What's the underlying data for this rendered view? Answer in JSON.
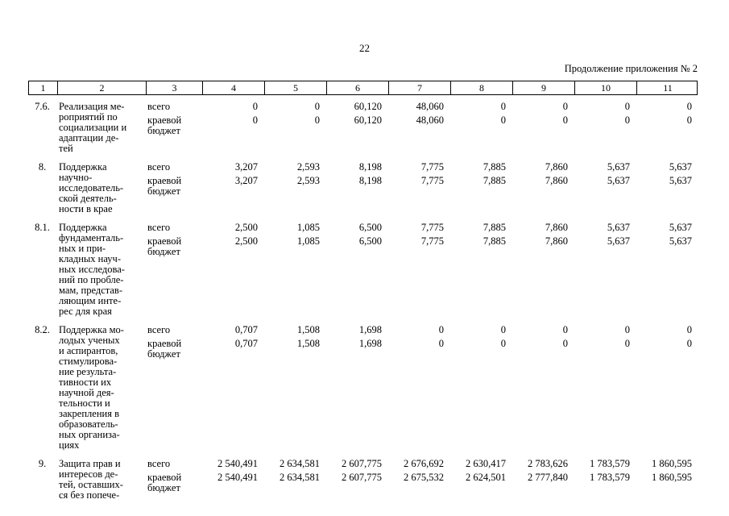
{
  "page": {
    "number": "22",
    "note": "Продолжение приложения № 2"
  },
  "table": {
    "columns": [
      "1",
      "2",
      "3",
      "4",
      "5",
      "6",
      "7",
      "8",
      "9",
      "10",
      "11"
    ],
    "rows": [
      {
        "num": "7.6.",
        "name": "Реализация ме-\nроприятий по\nсоциализации и\nадаптации де-\nтей",
        "total_label": "всего",
        "regional_label": "краевой\nбюджет",
        "total_values": [
          "0",
          "0",
          "60,120",
          "48,060",
          "0",
          "0",
          "0",
          "0"
        ],
        "regional_values": [
          "0",
          "0",
          "60,120",
          "48,060",
          "0",
          "0",
          "0",
          "0"
        ]
      },
      {
        "num": "8.",
        "name": "Поддержка\nнаучно-\nисследователь-\nской деятель-\nности в крае",
        "total_label": "всего",
        "regional_label": "краевой\nбюджет",
        "total_values": [
          "3,207",
          "2,593",
          "8,198",
          "7,775",
          "7,885",
          "7,860",
          "5,637",
          "5,637"
        ],
        "regional_values": [
          "3,207",
          "2,593",
          "8,198",
          "7,775",
          "7,885",
          "7,860",
          "5,637",
          "5,637"
        ]
      },
      {
        "num": "8.1.",
        "name": "Поддержка\nфундаменталь-\nных и при-\nкладных науч-\nных исследова-\nний по пробле-\nмам, представ-\nляющим инте-\nрес для края",
        "total_label": "всего",
        "regional_label": "краевой\nбюджет",
        "total_values": [
          "2,500",
          "1,085",
          "6,500",
          "7,775",
          "7,885",
          "7,860",
          "5,637",
          "5,637"
        ],
        "regional_values": [
          "2,500",
          "1,085",
          "6,500",
          "7,775",
          "7,885",
          "7,860",
          "5,637",
          "5,637"
        ]
      },
      {
        "num": "8.2.",
        "name": "Поддержка мо-\nлодых ученых\nи аспирантов,\nстимулирова-\nние результа-\nтивности их\nнаучной дея-\nтельности и\nзакрепления в\nобразователь-\nных организа-\nциях",
        "total_label": "всего",
        "regional_label": "краевой\nбюджет",
        "total_values": [
          "0,707",
          "1,508",
          "1,698",
          "0",
          "0",
          "0",
          "0",
          "0"
        ],
        "regional_values": [
          "0,707",
          "1,508",
          "1,698",
          "0",
          "0",
          "0",
          "0",
          "0"
        ]
      },
      {
        "num": "9.",
        "name": "Защита прав и\nинтересов де-\nтей, оставших-\nся без попече-",
        "total_label": "всего",
        "regional_label": "краевой\nбюджет",
        "total_values": [
          "2 540,491",
          "2 634,581",
          "2 607,775",
          "2 676,692",
          "2 630,417",
          "2 783,626",
          "1 783,579",
          "1 860,595"
        ],
        "regional_values": [
          "2 540,491",
          "2 634,581",
          "2 607,775",
          "2 675,532",
          "2 624,501",
          "2 777,840",
          "1 783,579",
          "1 860,595"
        ]
      }
    ]
  }
}
